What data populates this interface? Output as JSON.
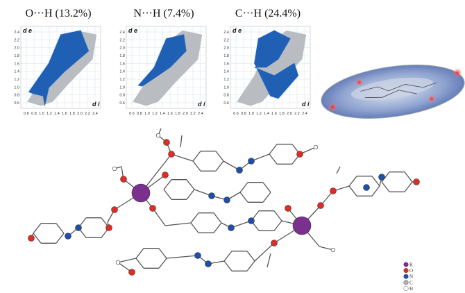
{
  "plots": [
    {
      "title": "O···H (13.2%)",
      "y_label": "d e",
      "x_label": "d i",
      "yticks": [
        "2.4",
        "2.2",
        "2.0",
        "1.8",
        "1.6",
        "1.4",
        "1.2",
        "1.0",
        "0.8",
        "0.6"
      ],
      "xticks": [
        "0.6",
        "0.8",
        "1.0",
        "1.2",
        "1.4",
        "1.6",
        "1.8",
        "2.0",
        "2.2",
        "2.4"
      ]
    },
    {
      "title": "N···H (7.4%)",
      "y_label": "d e",
      "x_label": "d i",
      "yticks": [
        "2.4",
        "2.2",
        "2.0",
        "1.8",
        "1.6",
        "1.4",
        "1.2",
        "1.0",
        "0.8",
        "0.6"
      ],
      "xticks": [
        "0.6",
        "0.8",
        "1.0",
        "1.2",
        "1.4",
        "1.6",
        "1.8",
        "2.0",
        "2.2",
        "2.4"
      ]
    },
    {
      "title": "C···H (24.4%)",
      "y_label": "d e",
      "x_label": "d i",
      "yticks": [
        "2.4",
        "2.2",
        "2.0",
        "1.8",
        "1.6",
        "1.4",
        "1.2",
        "1.0",
        "0.8",
        "0.6"
      ],
      "xticks": [
        "0.6",
        "0.8",
        "1.0",
        "1.2",
        "1.4",
        "1.6",
        "1.8",
        "2.0",
        "2.2",
        "2.4"
      ]
    }
  ],
  "legend": [
    "K",
    "O",
    "N",
    "C",
    "H"
  ]
}
